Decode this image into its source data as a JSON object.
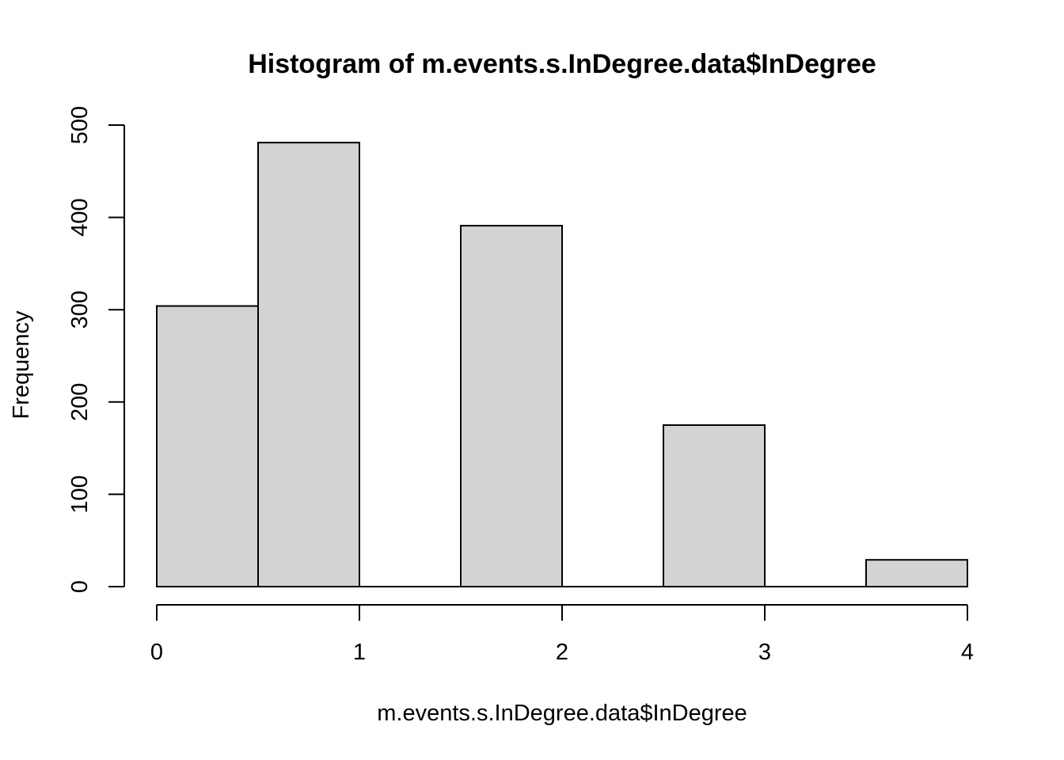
{
  "chart_data": {
    "type": "bar",
    "title": "Histogram of m.events.s.InDegree.data$InDegree",
    "xlabel": "m.events.s.InDegree.data$InDegree",
    "ylabel": "Frequency",
    "bins": [
      {
        "start": 0.0,
        "end": 0.5,
        "count": 304
      },
      {
        "start": 0.5,
        "end": 1.0,
        "count": 481
      },
      {
        "start": 1.0,
        "end": 1.5,
        "count": 0
      },
      {
        "start": 1.5,
        "end": 2.0,
        "count": 391
      },
      {
        "start": 2.0,
        "end": 2.5,
        "count": 0
      },
      {
        "start": 2.5,
        "end": 3.0,
        "count": 175
      },
      {
        "start": 3.0,
        "end": 3.5,
        "count": 0
      },
      {
        "start": 3.5,
        "end": 4.0,
        "count": 29
      }
    ],
    "xlim": [
      0,
      4
    ],
    "ylim": [
      0,
      500
    ],
    "x_ticks": [
      "0",
      "1",
      "2",
      "3",
      "4"
    ],
    "y_ticks": [
      "0",
      "100",
      "200",
      "300",
      "400",
      "500"
    ],
    "bar_fill": "#d3d3d3",
    "grid": false
  }
}
